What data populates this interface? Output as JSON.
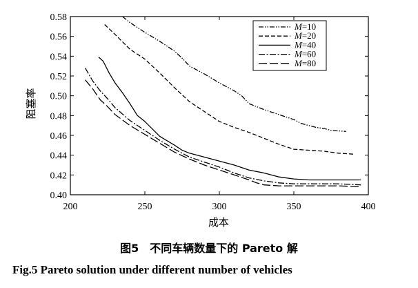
{
  "chart_data": {
    "type": "line",
    "xlabel": "成本",
    "ylabel": "阻塞率",
    "xlim": [
      200,
      400
    ],
    "ylim": [
      0.4,
      0.58
    ],
    "xticks": [
      200,
      250,
      300,
      350,
      400
    ],
    "yticks": [
      0.4,
      0.42,
      0.44,
      0.46,
      0.48,
      0.5,
      0.52,
      0.54,
      0.56,
      0.58
    ],
    "ytick_labels": [
      "0.40",
      "0.42",
      "0.44",
      "0.46",
      "0.48",
      "0.50",
      "0.52",
      "0.54",
      "0.56",
      "0.58"
    ],
    "grid": false,
    "legend_position": "top-right",
    "series": [
      {
        "name": "M=10",
        "legend_var": "M",
        "legend_val": "=10",
        "dash": "dash-dot-dot",
        "x": [
          235,
          240,
          250,
          260,
          270,
          275,
          280,
          290,
          300,
          310,
          315,
          320,
          330,
          340,
          350,
          355,
          365,
          370,
          375,
          385
        ],
        "y": [
          0.58,
          0.574,
          0.564,
          0.555,
          0.545,
          0.538,
          0.53,
          0.522,
          0.513,
          0.505,
          0.5,
          0.492,
          0.486,
          0.481,
          0.476,
          0.472,
          0.468,
          0.467,
          0.465,
          0.464
        ]
      },
      {
        "name": "M=20",
        "legend_var": "M",
        "legend_val": "=20",
        "dash": "dashed",
        "x": [
          223,
          230,
          240,
          250,
          260,
          270,
          280,
          290,
          300,
          310,
          320,
          330,
          340,
          350,
          360,
          370,
          380,
          390
        ],
        "y": [
          0.572,
          0.562,
          0.547,
          0.537,
          0.523,
          0.508,
          0.494,
          0.484,
          0.474,
          0.468,
          0.463,
          0.457,
          0.451,
          0.446,
          0.445,
          0.444,
          0.442,
          0.441
        ]
      },
      {
        "name": "M=40",
        "legend_var": "M",
        "legend_val": "=40",
        "dash": "solid",
        "x": [
          219,
          222,
          226,
          230,
          235,
          240,
          245,
          250,
          260,
          270,
          275,
          280,
          290,
          300,
          310,
          320,
          330,
          340,
          350,
          360,
          370,
          380,
          395
        ],
        "y": [
          0.539,
          0.535,
          0.523,
          0.513,
          0.503,
          0.492,
          0.48,
          0.474,
          0.459,
          0.45,
          0.445,
          0.442,
          0.438,
          0.434,
          0.43,
          0.425,
          0.422,
          0.418,
          0.416,
          0.415,
          0.415,
          0.415,
          0.415
        ]
      },
      {
        "name": "M=60",
        "legend_var": "M",
        "legend_val": "=60",
        "dash": "dash-dot",
        "x": [
          210,
          215,
          220,
          225,
          230,
          240,
          250,
          260,
          270,
          280,
          290,
          300,
          310,
          320,
          330,
          340,
          350,
          360,
          370,
          380,
          395
        ],
        "y": [
          0.528,
          0.515,
          0.505,
          0.497,
          0.488,
          0.475,
          0.465,
          0.455,
          0.446,
          0.438,
          0.433,
          0.428,
          0.422,
          0.417,
          0.414,
          0.412,
          0.411,
          0.411,
          0.411,
          0.411,
          0.41
        ]
      },
      {
        "name": "M=80",
        "legend_var": "M",
        "legend_val": "=80",
        "dash": "long-dash",
        "x": [
          210,
          215,
          220,
          225,
          230,
          240,
          250,
          260,
          270,
          280,
          290,
          300,
          310,
          320,
          325,
          330,
          340,
          350,
          360,
          370,
          380,
          395
        ],
        "y": [
          0.516,
          0.507,
          0.496,
          0.489,
          0.481,
          0.47,
          0.461,
          0.452,
          0.443,
          0.436,
          0.43,
          0.425,
          0.42,
          0.415,
          0.412,
          0.41,
          0.409,
          0.409,
          0.409,
          0.409,
          0.409,
          0.408
        ]
      }
    ]
  },
  "caption": {
    "cn": "图5　不同车辆数量下的 Pareto 解",
    "en": "Fig.5    Pareto solution under different number of vehicles"
  }
}
